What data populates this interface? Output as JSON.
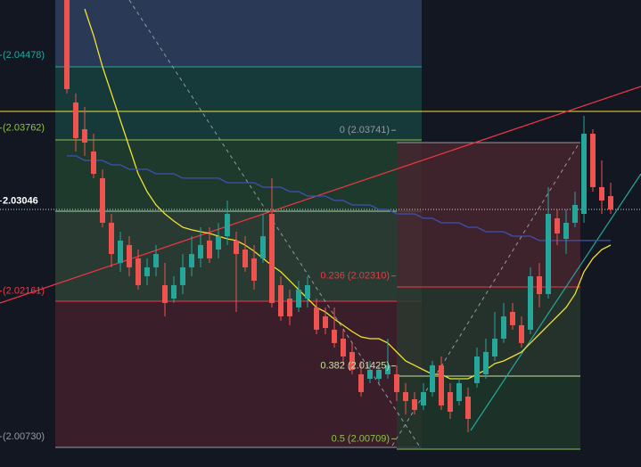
{
  "chart_data": {
    "type": "candlestick",
    "up_color": "#26a69a",
    "down_color": "#ef5350",
    "ylim": [
      2.00432,
      2.05021
    ],
    "yticks": [
      {
        "value": 2.04478,
        "label": "(2.04478)"
      },
      {
        "value": 2.03762,
        "label": "(2.03762)"
      },
      2.03046,
      {
        "value": 2.02161,
        "label": "(2.02161)"
      },
      {
        "value": 2.0073,
        "label": "(2.00730)"
      }
    ],
    "ytick_colors": [
      "#26a69a",
      "#8bc34a",
      "#ffffff",
      "#f23645",
      "#9598a1"
    ],
    "annotations": [
      {
        "value": 2.03741,
        "label": "0 (2.03741)",
        "color": "#9598a1"
      },
      {
        "value": 2.0231,
        "label": "0.236 (2.02310)",
        "color": "#f23645"
      },
      {
        "value": 2.01425,
        "label": "0.382 (2.01425)",
        "color": "#c5e1a5"
      },
      {
        "value": 2.00709,
        "label": "0.5 (2.00709)",
        "color": "#8bc34a"
      }
    ],
    "candles": [
      [
        2.05021,
        2.05021,
        2.04102,
        2.04145
      ],
      [
        2.04014,
        2.04102,
        2.03532,
        2.03664
      ],
      [
        2.03751,
        2.0397,
        2.03489,
        2.0362
      ],
      [
        2.03532,
        2.03707,
        2.0327,
        2.03313
      ],
      [
        2.0327,
        2.03357,
        2.02788,
        2.02832
      ],
      [
        2.02832,
        2.02919,
        2.02394,
        2.02525
      ],
      [
        2.02438,
        2.02744,
        2.0235,
        2.02657
      ],
      [
        2.02613,
        2.027,
        2.02306,
        2.02394
      ],
      [
        2.02482,
        2.02569,
        2.02175,
        2.02219
      ],
      [
        2.02306,
        2.02482,
        2.02219,
        2.02394
      ],
      [
        2.02394,
        2.02613,
        2.02306,
        2.02525
      ],
      [
        2.02219,
        2.02438,
        2.01912,
        2.02044
      ],
      [
        2.02087,
        2.02306,
        2.02044,
        2.02219
      ],
      [
        2.02219,
        2.02525,
        2.02131,
        2.02394
      ],
      [
        2.02394,
        2.027,
        2.02306,
        2.02525
      ],
      [
        2.02482,
        2.02788,
        2.02394,
        2.02613
      ],
      [
        2.02657,
        2.02788,
        2.02438,
        2.02482
      ],
      [
        2.02569,
        2.02832,
        2.02482,
        2.027
      ],
      [
        2.027,
        2.03051,
        2.02613,
        2.02919
      ],
      [
        2.02657,
        2.02744,
        2.01956,
        2.02525
      ],
      [
        2.02569,
        2.027,
        2.0235,
        2.02394
      ],
      [
        2.02482,
        2.02613,
        2.02175,
        2.02263
      ],
      [
        2.02482,
        2.02919,
        2.02438,
        2.027
      ],
      [
        2.02919,
        2.0327,
        2.02,
        2.02044
      ],
      [
        2.02219,
        2.02306,
        2.01869,
        2.01912
      ],
      [
        2.02087,
        2.02175,
        2.01825,
        2.01912
      ],
      [
        2.02,
        2.02263,
        2.01956,
        2.02175
      ],
      [
        2.02087,
        2.02306,
        2.02,
        2.02219
      ],
      [
        2.02,
        2.02087,
        2.01737,
        2.01781
      ],
      [
        2.01912,
        2.02,
        2.01737,
        2.01798
      ],
      [
        2.01781,
        2.02,
        2.01606,
        2.0165
      ],
      [
        2.01693,
        2.01781,
        2.01431,
        2.01518
      ],
      [
        2.01562,
        2.0165,
        2.01343,
        2.01387
      ],
      [
        2.01343,
        2.01474,
        2.01124,
        2.01168
      ],
      [
        2.01299,
        2.01474,
        2.01256,
        2.01387
      ],
      [
        2.01299,
        2.01431,
        2.01256,
        2.01387
      ],
      [
        2.01343,
        2.01693,
        2.01299,
        2.01431
      ],
      [
        2.01343,
        2.01431,
        2.0108,
        2.01168
      ],
      [
        2.01168,
        2.01256,
        2.00949,
        2.0108
      ],
      [
        2.01098,
        2.01168,
        2.00949,
        2.00993
      ],
      [
        2.01037,
        2.01256,
        2.00993,
        2.01168
      ],
      [
        2.01168,
        2.01474,
        2.01124,
        2.01431
      ],
      [
        2.01431,
        2.01518,
        2.00993,
        2.01037
      ],
      [
        2.01168,
        2.01256,
        2.00905,
        2.00975
      ],
      [
        2.0108,
        2.01299,
        2.01037,
        2.01256
      ],
      [
        2.01124,
        2.01212,
        2.00774,
        2.00905
      ],
      [
        2.01256,
        2.01606,
        2.01212,
        2.01518
      ],
      [
        2.01343,
        2.01693,
        2.01299,
        2.01562
      ],
      [
        2.01518,
        2.01956,
        2.01474,
        2.01693
      ],
      [
        2.01693,
        2.02044,
        2.0165,
        2.01912
      ],
      [
        2.01956,
        2.02044,
        2.01781,
        2.01825
      ],
      [
        2.01825,
        2.01912,
        2.01606,
        2.0165
      ],
      [
        2.01781,
        2.02394,
        2.01737,
        2.02306
      ],
      [
        2.02306,
        2.02438,
        2.02,
        2.02131
      ],
      [
        2.02131,
        2.03182,
        2.02087,
        2.02919
      ],
      [
        2.02876,
        2.02963,
        2.02613,
        2.02727
      ],
      [
        2.02674,
        2.02963,
        2.02525,
        2.02832
      ],
      [
        2.02832,
        2.03138,
        2.02788,
        2.03007
      ],
      [
        2.02919,
        2.03883,
        2.02832,
        2.03707
      ],
      [
        2.03707,
        2.03751,
        2.03138,
        2.03182
      ],
      [
        2.03182,
        2.03445,
        2.02919,
        2.03051
      ],
      [
        2.03094,
        2.03226,
        2.02919,
        2.02963
      ]
    ],
    "lines": [
      {
        "color": "#f0e130",
        "values": [
          null,
          null,
          2.04933,
          2.04671,
          2.04364,
          2.04102,
          2.03839,
          2.03576,
          2.03313,
          2.03138,
          2.03007,
          2.02919,
          2.02849,
          2.02788,
          2.02762,
          2.02744,
          2.02727,
          2.027,
          2.02674,
          2.02657,
          2.02613,
          2.02552,
          2.02482,
          2.02411,
          2.0235,
          2.02263,
          2.02175,
          2.02087,
          2.02,
          2.01956,
          2.01886,
          2.01825,
          2.01763,
          2.01711,
          2.01693,
          2.01693,
          2.0165,
          2.01562,
          2.01474,
          2.01431,
          2.01387,
          2.01343,
          2.01343,
          2.01299,
          2.01299,
          2.01299,
          2.01343,
          2.01387,
          2.01448,
          2.01474,
          2.01518,
          2.01562,
          2.0165,
          2.01737,
          2.01825,
          2.01912,
          2.02,
          2.02131,
          2.0235,
          2.02482,
          2.02569,
          2.02613
        ]
      },
      {
        "color": "#3f51b5",
        "values": [
          2.03489,
          2.03489,
          2.03445,
          2.03445,
          2.03445,
          2.03401,
          2.03401,
          2.03357,
          2.03357,
          2.03357,
          2.03313,
          2.03313,
          2.03313,
          2.0327,
          2.0327,
          2.0327,
          2.0327,
          2.0327,
          2.03226,
          2.03226,
          2.03226,
          2.03226,
          2.03182,
          2.03182,
          2.03182,
          2.03138,
          2.03138,
          2.03094,
          2.03094,
          2.03094,
          2.03051,
          2.03051,
          2.03007,
          2.03007,
          2.03007,
          2.02963,
          2.02963,
          2.02919,
          2.02919,
          2.02919,
          2.02876,
          2.02876,
          2.02832,
          2.02832,
          2.02832,
          2.02788,
          2.02788,
          2.02744,
          2.02744,
          2.02744,
          2.027,
          2.027,
          2.027,
          2.02657,
          2.02657,
          2.02657,
          2.02657,
          2.02657,
          2.02657,
          2.02657,
          2.02657,
          2.02657
        ]
      }
    ]
  }
}
